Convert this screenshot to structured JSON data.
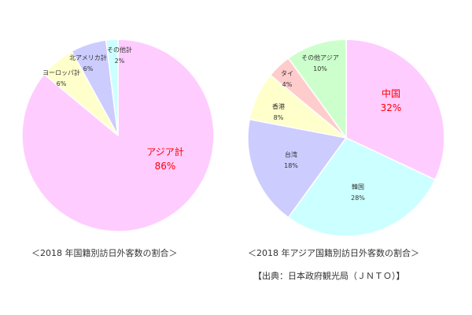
{
  "chart_data": [
    {
      "type": "pie",
      "title": "＜2018 年国籍別訪日外客数の割合＞",
      "slices": [
        {
          "name": "アジア計",
          "value": 86,
          "label": "86%",
          "color": "#FFCCFF",
          "highlight": true
        },
        {
          "name": "ヨーロッパ計",
          "value": 6,
          "label": "6%",
          "color": "#FFFFCC",
          "highlight": false
        },
        {
          "name": "北アメリカ計",
          "value": 6,
          "label": "6%",
          "color": "#CCCCFF",
          "highlight": false
        },
        {
          "name": "その他計",
          "value": 2,
          "label": "2%",
          "color": "#CCFFFF",
          "highlight": false
        }
      ]
    },
    {
      "type": "pie",
      "title": "＜2018 年アジア国籍別訪日外客数の割合＞",
      "slices": [
        {
          "name": "中国",
          "value": 32,
          "label": "32%",
          "color": "#FFCCFF",
          "highlight": true
        },
        {
          "name": "韓国",
          "value": 28,
          "label": "28%",
          "color": "#CCFFFF",
          "highlight": false
        },
        {
          "name": "台湾",
          "value": 18,
          "label": "18%",
          "color": "#CCCCFF",
          "highlight": false
        },
        {
          "name": "香港",
          "value": 8,
          "label": "8%",
          "color": "#FFFFCC",
          "highlight": false
        },
        {
          "name": "タイ",
          "value": 4,
          "label": "4%",
          "color": "#FFCCCC",
          "highlight": false
        },
        {
          "name": "その他アジア",
          "value": 10,
          "label": "10%",
          "color": "#CCFFCC",
          "highlight": false
        }
      ]
    }
  ],
  "source": "【出典：日本政府観光局（ＪＮＴＯ）】",
  "colors": {
    "highlight_text": "#FF0000",
    "text": "#333333",
    "edge": "#FFFFFF"
  }
}
